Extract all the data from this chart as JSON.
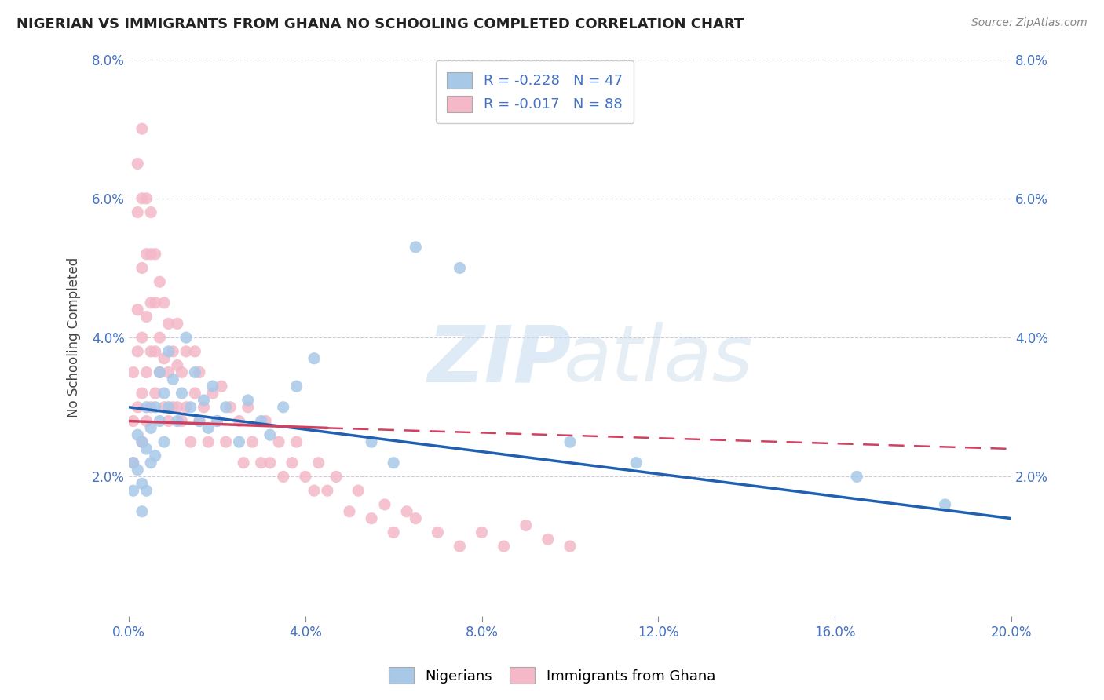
{
  "title": "NIGERIAN VS IMMIGRANTS FROM GHANA NO SCHOOLING COMPLETED CORRELATION CHART",
  "source": "Source: ZipAtlas.com",
  "ylabel": "No Schooling Completed",
  "xlabel_nigerians": "Nigerians",
  "xlabel_ghana": "Immigrants from Ghana",
  "xlim": [
    0.0,
    0.2
  ],
  "ylim": [
    0.0,
    0.08
  ],
  "xticks": [
    0.0,
    0.04,
    0.08,
    0.12,
    0.16,
    0.2
  ],
  "xtick_labels": [
    "0.0%",
    "4.0%",
    "8.0%",
    "12.0%",
    "16.0%",
    "20.0%"
  ],
  "yticks": [
    0.0,
    0.02,
    0.04,
    0.06,
    0.08
  ],
  "ytick_labels": [
    "",
    "2.0%",
    "4.0%",
    "6.0%",
    "8.0%"
  ],
  "blue_R": -0.228,
  "blue_N": 47,
  "pink_R": -0.017,
  "pink_N": 88,
  "blue_color": "#a8c8e8",
  "pink_color": "#f4b8c8",
  "blue_line_color": "#2060b0",
  "pink_line_color": "#d04060",
  "blue_line_x0": 0.0,
  "blue_line_y0": 0.03,
  "blue_line_x1": 0.2,
  "blue_line_y1": 0.014,
  "pink_line_solid_x0": 0.0,
  "pink_line_solid_y0": 0.028,
  "pink_line_solid_x1": 0.045,
  "pink_line_solid_y1": 0.027,
  "pink_line_dash_x0": 0.045,
  "pink_line_dash_y0": 0.027,
  "pink_line_dash_x1": 0.2,
  "pink_line_dash_y1": 0.024,
  "blue_scatter_x": [
    0.001,
    0.001,
    0.002,
    0.002,
    0.003,
    0.003,
    0.003,
    0.004,
    0.004,
    0.004,
    0.005,
    0.005,
    0.006,
    0.006,
    0.007,
    0.007,
    0.008,
    0.008,
    0.009,
    0.009,
    0.01,
    0.011,
    0.012,
    0.013,
    0.014,
    0.015,
    0.016,
    0.017,
    0.018,
    0.019,
    0.02,
    0.022,
    0.025,
    0.027,
    0.03,
    0.032,
    0.035,
    0.038,
    0.042,
    0.055,
    0.06,
    0.065,
    0.075,
    0.1,
    0.115,
    0.165,
    0.185
  ],
  "blue_scatter_y": [
    0.022,
    0.018,
    0.026,
    0.021,
    0.025,
    0.019,
    0.015,
    0.03,
    0.024,
    0.018,
    0.027,
    0.022,
    0.03,
    0.023,
    0.035,
    0.028,
    0.032,
    0.025,
    0.038,
    0.03,
    0.034,
    0.028,
    0.032,
    0.04,
    0.03,
    0.035,
    0.028,
    0.031,
    0.027,
    0.033,
    0.028,
    0.03,
    0.025,
    0.031,
    0.028,
    0.026,
    0.03,
    0.033,
    0.037,
    0.025,
    0.022,
    0.053,
    0.05,
    0.025,
    0.022,
    0.02,
    0.016
  ],
  "pink_scatter_x": [
    0.001,
    0.001,
    0.001,
    0.002,
    0.002,
    0.002,
    0.002,
    0.002,
    0.003,
    0.003,
    0.003,
    0.003,
    0.003,
    0.003,
    0.004,
    0.004,
    0.004,
    0.004,
    0.004,
    0.005,
    0.005,
    0.005,
    0.005,
    0.005,
    0.006,
    0.006,
    0.006,
    0.006,
    0.007,
    0.007,
    0.007,
    0.008,
    0.008,
    0.008,
    0.009,
    0.009,
    0.009,
    0.01,
    0.01,
    0.011,
    0.011,
    0.011,
    0.012,
    0.012,
    0.013,
    0.013,
    0.014,
    0.015,
    0.015,
    0.016,
    0.016,
    0.017,
    0.018,
    0.019,
    0.02,
    0.021,
    0.022,
    0.023,
    0.025,
    0.026,
    0.027,
    0.028,
    0.03,
    0.031,
    0.032,
    0.034,
    0.035,
    0.037,
    0.038,
    0.04,
    0.042,
    0.043,
    0.045,
    0.047,
    0.05,
    0.052,
    0.055,
    0.058,
    0.06,
    0.063,
    0.065,
    0.07,
    0.075,
    0.08,
    0.085,
    0.09,
    0.095,
    0.1
  ],
  "pink_scatter_y": [
    0.022,
    0.028,
    0.035,
    0.03,
    0.038,
    0.044,
    0.058,
    0.065,
    0.025,
    0.032,
    0.04,
    0.05,
    0.06,
    0.07,
    0.028,
    0.035,
    0.043,
    0.052,
    0.06,
    0.03,
    0.038,
    0.045,
    0.052,
    0.058,
    0.032,
    0.038,
    0.045,
    0.052,
    0.035,
    0.04,
    0.048,
    0.03,
    0.037,
    0.045,
    0.028,
    0.035,
    0.042,
    0.03,
    0.038,
    0.03,
    0.036,
    0.042,
    0.028,
    0.035,
    0.03,
    0.038,
    0.025,
    0.032,
    0.038,
    0.028,
    0.035,
    0.03,
    0.025,
    0.032,
    0.028,
    0.033,
    0.025,
    0.03,
    0.028,
    0.022,
    0.03,
    0.025,
    0.022,
    0.028,
    0.022,
    0.025,
    0.02,
    0.022,
    0.025,
    0.02,
    0.018,
    0.022,
    0.018,
    0.02,
    0.015,
    0.018,
    0.014,
    0.016,
    0.012,
    0.015,
    0.014,
    0.012,
    0.01,
    0.012,
    0.01,
    0.013,
    0.011,
    0.01
  ]
}
